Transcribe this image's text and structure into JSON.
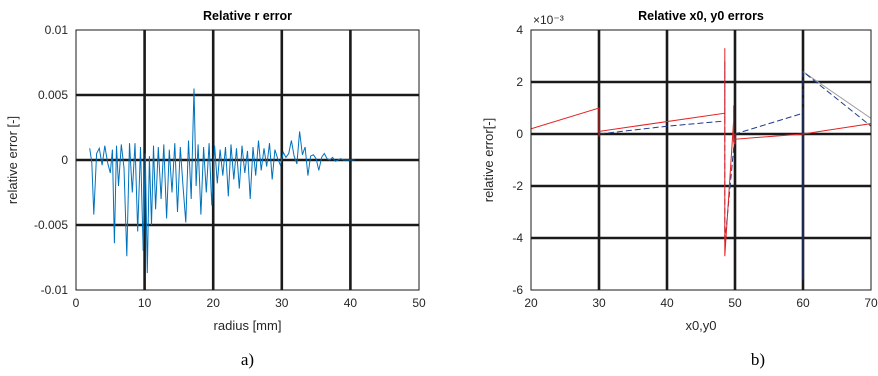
{
  "chart_data": [
    {
      "type": "line",
      "title": "Relative r error",
      "xlabel": "radius [mm]",
      "ylabel": "relative error [-]",
      "xlim": [
        0,
        50
      ],
      "ylim": [
        -0.01,
        0.01
      ],
      "xticks": [
        0,
        10,
        20,
        30,
        40,
        50
      ],
      "xtick_labels": [
        "0",
        "10",
        "20",
        "30",
        "40",
        "50"
      ],
      "yticks": [
        -0.01,
        -0.005,
        0,
        0.005,
        0.01
      ],
      "ytick_labels": [
        "-0.01",
        "-0.005",
        "0",
        "0.005",
        "0.01"
      ],
      "grid": true,
      "caption": "a)",
      "series": [
        {
          "color": "#0072bd",
          "style": "solid",
          "x": [
            2.0,
            2.3,
            2.6,
            3.0,
            3.4,
            3.8,
            4.2,
            4.6,
            5.0,
            5.3,
            5.6,
            5.9,
            6.2,
            6.6,
            7.0,
            7.4,
            7.8,
            8.2,
            8.6,
            9.0,
            9.4,
            9.8,
            10.1,
            10.4,
            10.7,
            11.0,
            11.3,
            11.6,
            12.0,
            12.4,
            12.8,
            13.2,
            13.6,
            14.0,
            14.4,
            14.8,
            15.2,
            15.6,
            16.0,
            16.4,
            16.8,
            17.2,
            17.5,
            17.8,
            18.2,
            18.6,
            19.0,
            19.4,
            19.8,
            20.2,
            20.6,
            21.0,
            21.4,
            21.8,
            22.2,
            22.6,
            23.0,
            23.4,
            23.8,
            24.2,
            24.6,
            25.0,
            25.4,
            25.8,
            26.2,
            26.6,
            27.0,
            27.4,
            27.8,
            28.2,
            28.6,
            29.0,
            29.4,
            29.8,
            30.2,
            30.6,
            31.0,
            31.4,
            31.8,
            32.2,
            32.6,
            33.0,
            33.4,
            33.8,
            34.2,
            34.6,
            35.0,
            35.4,
            35.8,
            36.2,
            36.6,
            37.0,
            37.4,
            37.8,
            38.2,
            38.6,
            39.0,
            39.4,
            39.8,
            40.2,
            40.6
          ],
          "values": [
            0.0009,
            -0.0002,
            -0.0042,
            0.0005,
            0.0009,
            -0.0004,
            0.0011,
            -0.0002,
            -0.001,
            0.0008,
            -0.0064,
            0.0011,
            -0.002,
            0.0012,
            -0.0006,
            -0.0074,
            0.0013,
            -0.0025,
            0.0013,
            -0.0055,
            0.001,
            -0.007,
            0.0005,
            -0.0087,
            0.0003,
            -0.005,
            0.0011,
            -0.0038,
            0.001,
            -0.003,
            0.0012,
            -0.0045,
            0.0008,
            -0.0025,
            0.0013,
            -0.004,
            0.001,
            -0.002,
            -0.0048,
            0.0015,
            -0.003,
            0.0055,
            -0.002,
            0.0012,
            -0.0042,
            0.001,
            -0.0025,
            0.0013,
            -0.0035,
            0.0011,
            -0.0018,
            0.0008,
            -0.0012,
            0.001,
            -0.0028,
            0.0012,
            -0.0015,
            0.0009,
            -0.0022,
            0.0011,
            -0.001,
            0.0007,
            -0.003,
            0.001,
            -0.0012,
            0.0015,
            -0.0008,
            0.0009,
            -0.0005,
            0.0013,
            -0.0015,
            0.0008,
            0.0001,
            -0.0004,
            0.0006,
            0.0002,
            0.0005,
            0.0015,
            0.0003,
            -0.0003,
            0.0022,
            0.0004,
            0.001,
            -0.0012,
            0.0003,
            0.0004,
            0.0001,
            -0.0008,
            0.0002,
            0.0005,
            0.0001,
            0.0,
            0.0002,
            -0.0001,
            0.0,
            0.0001,
            0.0,
            0.0,
            0.0,
            0.0,
            0.0
          ]
        }
      ]
    },
    {
      "type": "line",
      "title": "Relative x0, y0 errors",
      "xlabel": "x0,y0",
      "ylabel": "relative error[-]",
      "exponent_label": "×10⁻³",
      "xlim": [
        20,
        70
      ],
      "ylim": [
        -6,
        4
      ],
      "xticks": [
        20,
        30,
        40,
        50,
        60,
        70
      ],
      "xtick_labels": [
        "20",
        "30",
        "40",
        "50",
        "60",
        "70"
      ],
      "yticks": [
        -6,
        -4,
        -2,
        0,
        2,
        4
      ],
      "ytick_labels": [
        "-6",
        "-4",
        "-2",
        "0",
        "2",
        "4"
      ],
      "grid": true,
      "caption": "b)",
      "series": [
        {
          "color": "#e32222",
          "style": "solid",
          "x": [
            20,
            20,
            20,
            30,
            30,
            30,
            48.5,
            48.5,
            48.5,
            49.8,
            49.8,
            49.8,
            50,
            50,
            50,
            60,
            70,
            70,
            70
          ],
          "values": [
            0.2,
            1.1,
            0.2,
            1.0,
            -0.1,
            0.1,
            0.8,
            3.3,
            -4.7,
            0.5,
            1.1,
            -0.3,
            -0.4,
            0,
            -0.2,
            0.0,
            0.4,
            -1.0,
            3.5
          ]
        },
        {
          "color": "#1f3b8c",
          "style": "dashed",
          "x": [
            30,
            40,
            48.5,
            48.5,
            48.5,
            50,
            60,
            60,
            60,
            70
          ],
          "values": [
            0.0,
            0.3,
            0.5,
            2.8,
            -4.2,
            0.0,
            0.8,
            -5.6,
            2.4,
            0.3
          ]
        },
        {
          "color": "#9a9a9a",
          "style": "solid",
          "x": [
            60,
            70
          ],
          "values": [
            2.4,
            0.6
          ]
        }
      ]
    }
  ]
}
